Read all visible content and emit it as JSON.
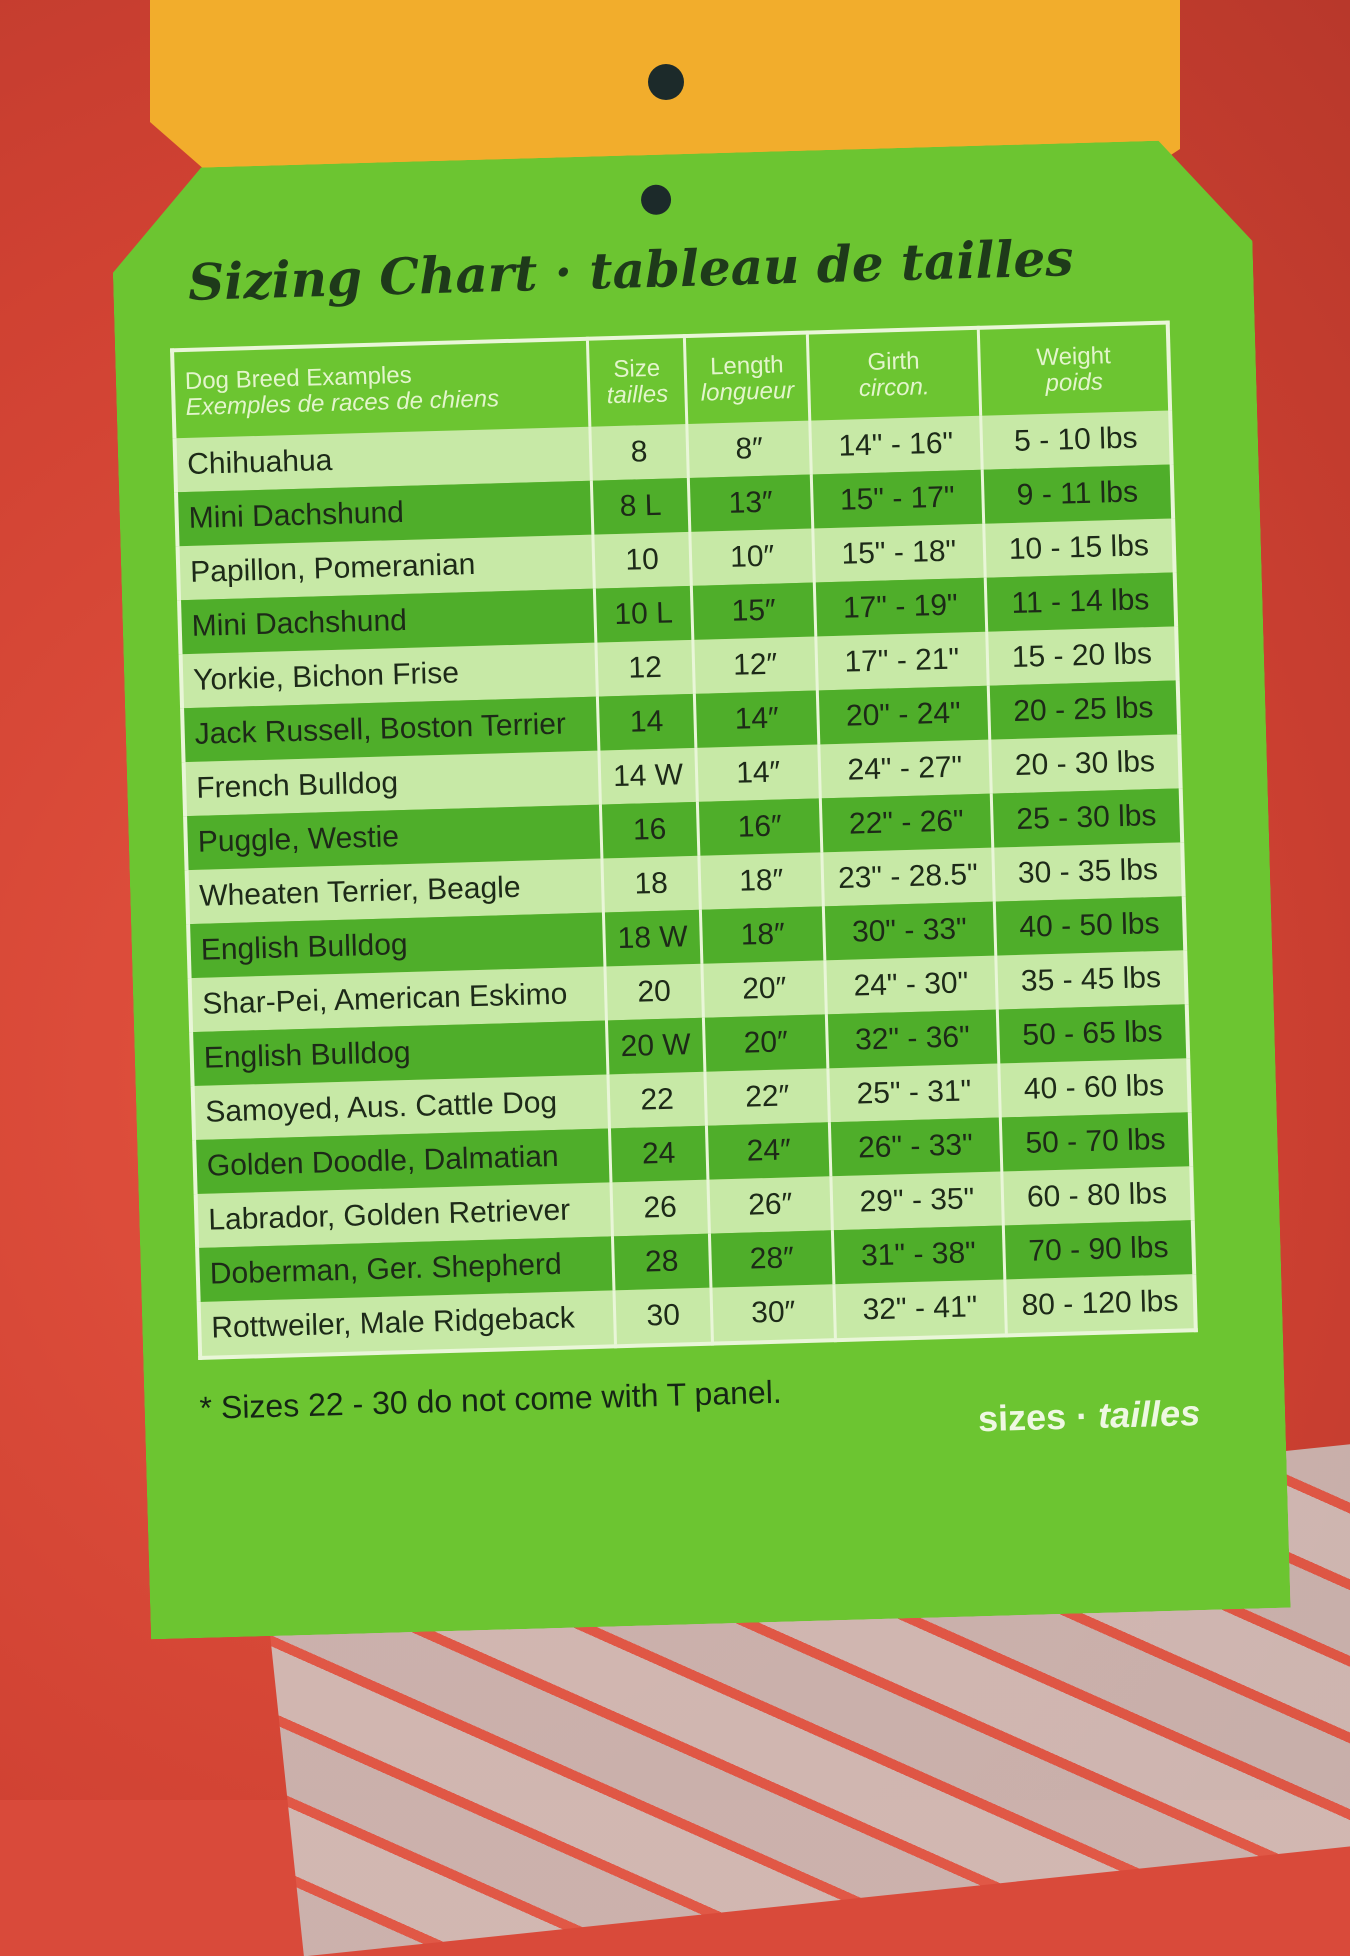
{
  "title": "Sizing Chart · tableau de tailles",
  "headers": [
    {
      "en": "Dog Breed Examples",
      "fr": "Exemples de races de chiens"
    },
    {
      "en": "Size",
      "fr": "tailles"
    },
    {
      "en": "Length",
      "fr": "longueur"
    },
    {
      "en": "Girth",
      "fr": "circon."
    },
    {
      "en": "Weight",
      "fr": "poids"
    }
  ],
  "rows": [
    [
      "Chihuahua",
      "8",
      "8″",
      "14\" - 16\"",
      "5 - 10 lbs"
    ],
    [
      "Mini Dachshund",
      "8 L",
      "13″",
      "15\" - 17\"",
      "9 - 11 lbs"
    ],
    [
      "Papillon, Pomeranian",
      "10",
      "10″",
      "15\" - 18\"",
      "10 - 15 lbs"
    ],
    [
      "Mini Dachshund",
      "10 L",
      "15″",
      "17\" - 19\"",
      "11 - 14 lbs"
    ],
    [
      "Yorkie, Bichon Frise",
      "12",
      "12″",
      "17\" - 21\"",
      "15 - 20 lbs"
    ],
    [
      "Jack Russell, Boston Terrier",
      "14",
      "14″",
      "20\" - 24\"",
      "20 - 25 lbs"
    ],
    [
      "French Bulldog",
      "14 W",
      "14″",
      "24\" - 27\"",
      "20 - 30 lbs"
    ],
    [
      "Puggle, Westie",
      "16",
      "16″",
      "22\" - 26\"",
      "25 - 30 lbs"
    ],
    [
      "Wheaten Terrier, Beagle",
      "18",
      "18″",
      "23\" - 28.5\"",
      "30 - 35 lbs"
    ],
    [
      "English Bulldog",
      "18 W",
      "18″",
      "30\" - 33\"",
      "40 - 50 lbs"
    ],
    [
      "Shar-Pei, American Eskimo",
      "20",
      "20″",
      "24\" - 30\"",
      "35 - 45 lbs"
    ],
    [
      "English Bulldog",
      "20 W",
      "20″",
      "32\" - 36\"",
      "50 - 65 lbs"
    ],
    [
      "Samoyed, Aus. Cattle Dog",
      "22",
      "22″",
      "25\" - 31\"",
      "40 - 60 lbs"
    ],
    [
      "Golden Doodle, Dalmatian",
      "24",
      "24″",
      "26\" - 33\"",
      "50 - 70 lbs"
    ],
    [
      "Labrador, Golden Retriever",
      "26",
      "26″",
      "29\" - 35\"",
      "60 - 80 lbs"
    ],
    [
      "Doberman, Ger. Shepherd",
      "28",
      "28″",
      "31\" - 38\"",
      "70 - 90 lbs"
    ],
    [
      "Rottweiler, Male Ridgeback",
      "30",
      "30″",
      "32\" - 41\"",
      "80 - 120 lbs"
    ]
  ],
  "note": "* Sizes 22 - 30 do not come with T panel.",
  "footer": {
    "en": "sizes",
    "sep": " · ",
    "fr": "tailles"
  },
  "colors": {
    "tag_green": "#6cc531",
    "row_light": "#c7e9a6",
    "row_dark": "#4fae2a",
    "fabric_red": "#d94a3a",
    "tag_yellow": "#f2ad2c"
  }
}
